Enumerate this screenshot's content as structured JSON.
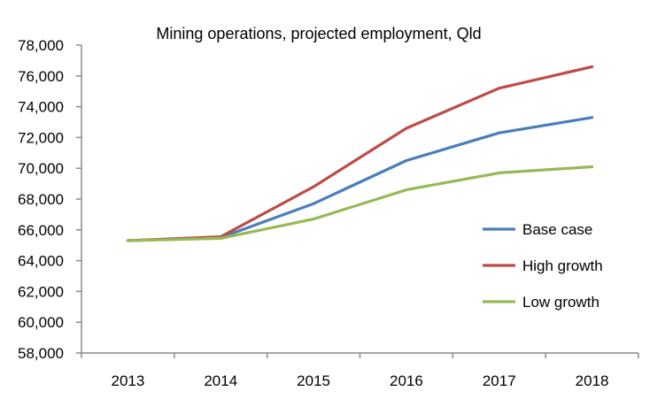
{
  "chart_data": {
    "type": "line",
    "title": "Mining operations, projected employment, Qld",
    "xlabel": "",
    "ylabel": "",
    "categories": [
      "2013",
      "2014",
      "2015",
      "2016",
      "2017",
      "2018"
    ],
    "ylim": [
      58000,
      78000
    ],
    "yticks": [
      58000,
      60000,
      62000,
      64000,
      66000,
      68000,
      70000,
      72000,
      74000,
      76000,
      78000
    ],
    "ytick_labels": [
      "58,000",
      "60,000",
      "62,000",
      "64,000",
      "66,000",
      "68,000",
      "70,000",
      "72,000",
      "74,000",
      "76,000",
      "78,000"
    ],
    "grid": false,
    "legend_position": "right",
    "series": [
      {
        "name": "Base case",
        "color": "#4a7ebb",
        "values": [
          65300,
          65500,
          67700,
          70500,
          72300,
          73300
        ]
      },
      {
        "name": "High growth",
        "color": "#be4b48",
        "values": [
          65300,
          65550,
          68800,
          72600,
          75200,
          76600
        ]
      },
      {
        "name": "Low growth",
        "color": "#98b954",
        "values": [
          65300,
          65450,
          66700,
          68600,
          69700,
          70100
        ]
      }
    ]
  }
}
